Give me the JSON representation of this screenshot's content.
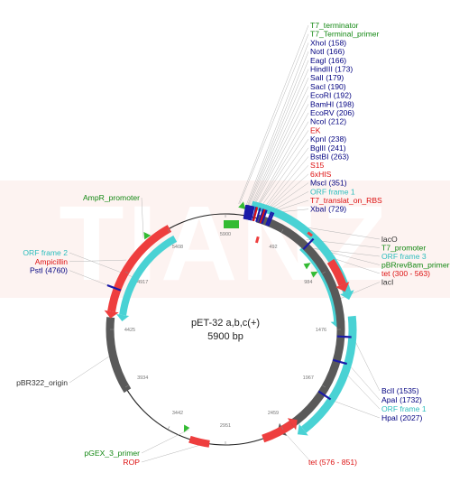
{
  "plasmid": {
    "name": "pET-32 a,b,c(+)",
    "size": "5900 bp",
    "watermark": "TIANZ"
  },
  "colors": {
    "black": "#000080",
    "green": "#138813",
    "cyan": "#2cbdbd",
    "red": "#dd1111",
    "feature_red": "#ee3e3e",
    "feature_cyan": "#49d2d4",
    "feature_gray": "#595959",
    "feature_green": "#33bb33",
    "watermark_bg": "#fdf3f1"
  },
  "ticks": [
    "5900",
    "492",
    "984",
    "1476",
    "1967",
    "2459",
    "2951",
    "3442",
    "3934",
    "4425",
    "4917",
    "5408"
  ],
  "labels": {
    "top": [
      {
        "text": "T7_terminator",
        "color": "green"
      },
      {
        "text": "T7_Terminal_primer",
        "color": "green"
      },
      {
        "text": "XhoI (158)",
        "color": "black"
      },
      {
        "text": "NotI (166)",
        "color": "black"
      },
      {
        "text": "EagI (166)",
        "color": "black"
      },
      {
        "text": "HindIII (173)",
        "color": "black"
      },
      {
        "text": "SalI (179)",
        "color": "black"
      },
      {
        "text": "SacI (190)",
        "color": "black"
      },
      {
        "text": "EcoRI (192)",
        "color": "black"
      },
      {
        "text": "BamHI (198)",
        "color": "black"
      },
      {
        "text": "EcoRV (206)",
        "color": "black"
      },
      {
        "text": "NcoI (212)",
        "color": "black"
      },
      {
        "text": "EK",
        "color": "red"
      },
      {
        "text": "KpnI (238)",
        "color": "black"
      },
      {
        "text": "BglII (241)",
        "color": "black"
      },
      {
        "text": "BstBI (263)",
        "color": "black"
      },
      {
        "text": "S15",
        "color": "red"
      },
      {
        "text": "6xHIS",
        "color": "red"
      },
      {
        "text": "MscI (351)",
        "color": "black"
      },
      {
        "text": "ORF frame 1",
        "color": "cyan"
      },
      {
        "text": "T7_translat_on_RBS",
        "color": "red"
      },
      {
        "text": "XbaI (729)",
        "color": "black"
      }
    ],
    "right_mid": [
      {
        "text": "lacO",
        "color": "dark"
      },
      {
        "text": "T7_promoter",
        "color": "green"
      },
      {
        "text": "ORF frame 3",
        "color": "cyan"
      },
      {
        "text": "pBRrevBam_primer",
        "color": "green"
      },
      {
        "text": "tet (300 - 563)",
        "color": "red"
      },
      {
        "text": "lacI",
        "color": "dark"
      }
    ],
    "right_low": [
      {
        "text": "BclI (1535)",
        "color": "black"
      },
      {
        "text": "ApaI (1732)",
        "color": "black"
      },
      {
        "text": "ORF frame 1",
        "color": "cyan"
      },
      {
        "text": "HpaI (2027)",
        "color": "black"
      }
    ],
    "tet_low": {
      "text": "tet (576 - 851)",
      "color": "red"
    },
    "amp_promoter": {
      "text": "AmpR_promoter",
      "color": "green"
    },
    "left": [
      {
        "text": "ORF frame 2",
        "color": "cyan"
      },
      {
        "text": "Ampicillin",
        "color": "red"
      },
      {
        "text": "PstI (4760)",
        "color": "black"
      }
    ],
    "origin": {
      "text": "pBR322_origin",
      "color": "dark"
    },
    "bottom_left": [
      {
        "text": "pGEX_3_primer",
        "color": "green"
      },
      {
        "text": "ROP",
        "color": "red"
      }
    ]
  }
}
